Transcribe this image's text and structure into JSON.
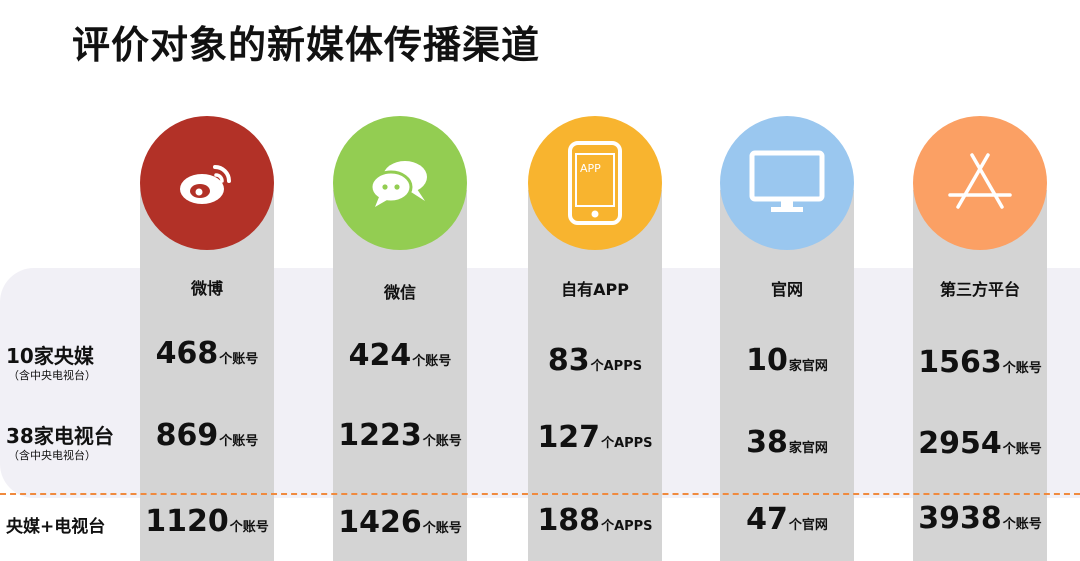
{
  "title": "评价对象的新媒体传播渠道",
  "app_badge_text": "APP",
  "columns": [
    {
      "label": "微博",
      "icon": "weibo-icon",
      "color": "#b23127"
    },
    {
      "label": "微信",
      "icon": "wechat-icon",
      "color": "#93cd52"
    },
    {
      "label": "自有APP",
      "icon": "mobile-app-icon",
      "color": "#f8b42f"
    },
    {
      "label": "官网",
      "icon": "monitor-icon",
      "color": "#9ac7ef"
    },
    {
      "label": "第三方平台",
      "icon": "app-store-icon",
      "color": "#fba064"
    }
  ],
  "rows": [
    {
      "label": "10家央媒",
      "sublabel": "（含中央电视台）",
      "cells": [
        {
          "value": "468",
          "unit": "个账号"
        },
        {
          "value": "424",
          "unit": "个账号"
        },
        {
          "value": "83",
          "unit": "个APPS"
        },
        {
          "value": "10",
          "unit": "家官网"
        },
        {
          "value": "1563",
          "unit": "个账号"
        }
      ]
    },
    {
      "label": "38家电视台",
      "sublabel": "（含中央电视台）",
      "cells": [
        {
          "value": "869",
          "unit": "个账号"
        },
        {
          "value": "1223",
          "unit": "个账号"
        },
        {
          "value": "127",
          "unit": "个APPS"
        },
        {
          "value": "38",
          "unit": "家官网"
        },
        {
          "value": "2954",
          "unit": "个账号"
        }
      ]
    },
    {
      "label": "央媒+电视台",
      "sublabel": "",
      "cells": [
        {
          "value": "1120",
          "unit": "个账号"
        },
        {
          "value": "1426",
          "unit": "个账号"
        },
        {
          "value": "188",
          "unit": "个APPS"
        },
        {
          "value": "47",
          "unit": "个官网"
        },
        {
          "value": "3938",
          "unit": "个账号"
        }
      ]
    }
  ]
}
